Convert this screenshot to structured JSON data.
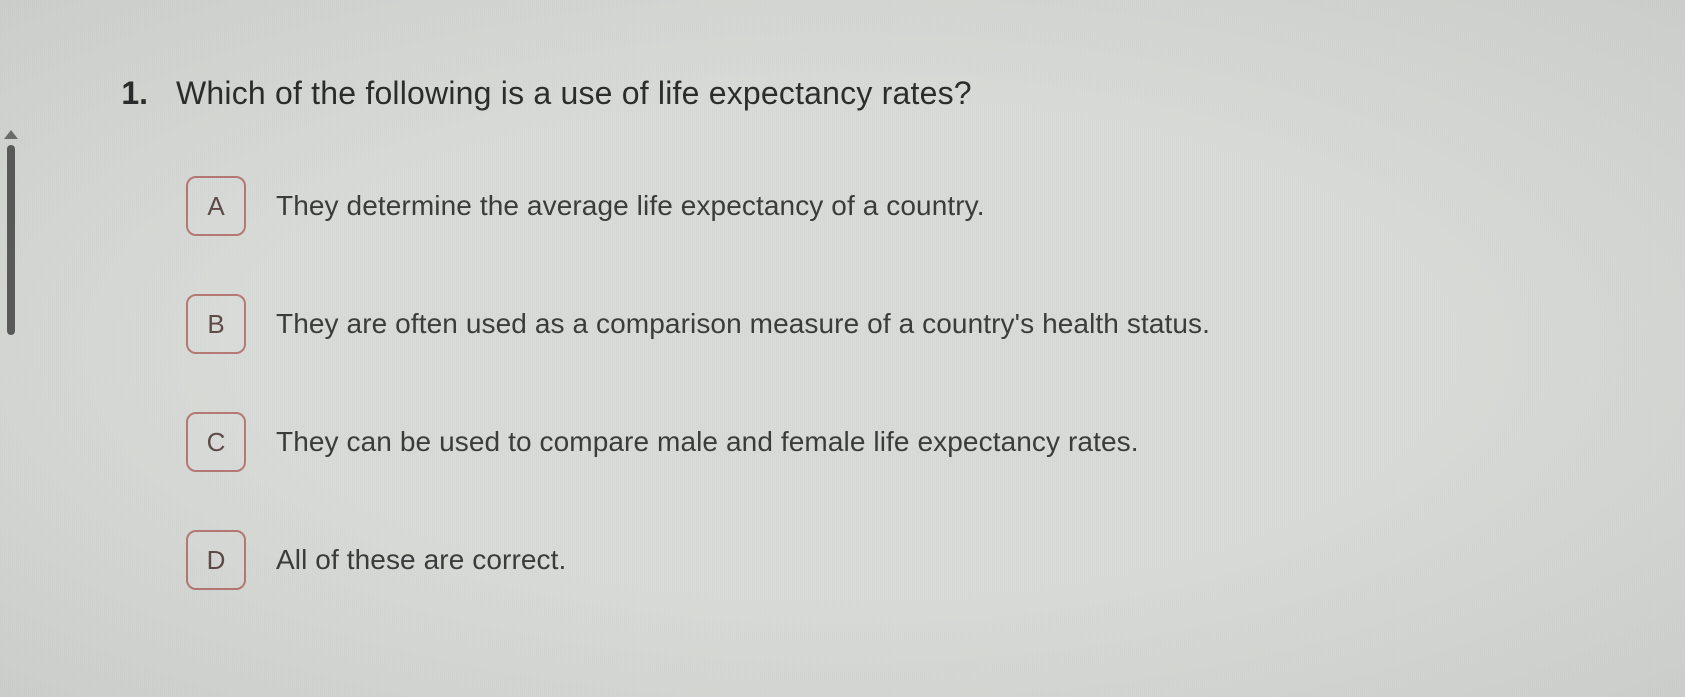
{
  "colors": {
    "background": "#d9dbd8",
    "question_text": "#2b2c2b",
    "option_text": "#3a3b3a",
    "option_border": "#b57a73",
    "option_letter": "#5e4b48",
    "scrollbar": "#5a5b5a"
  },
  "question": {
    "number": "1.",
    "text": "Which of the following is a use of life expectancy rates?"
  },
  "options": [
    {
      "letter": "A",
      "text": "They determine the average life expectancy of a country."
    },
    {
      "letter": "B",
      "text": "They are often used as a comparison measure of a country's health status."
    },
    {
      "letter": "C",
      "text": "They can be used to compare male and female life expectancy rates."
    },
    {
      "letter": "D",
      "text": "All of these are correct."
    }
  ]
}
